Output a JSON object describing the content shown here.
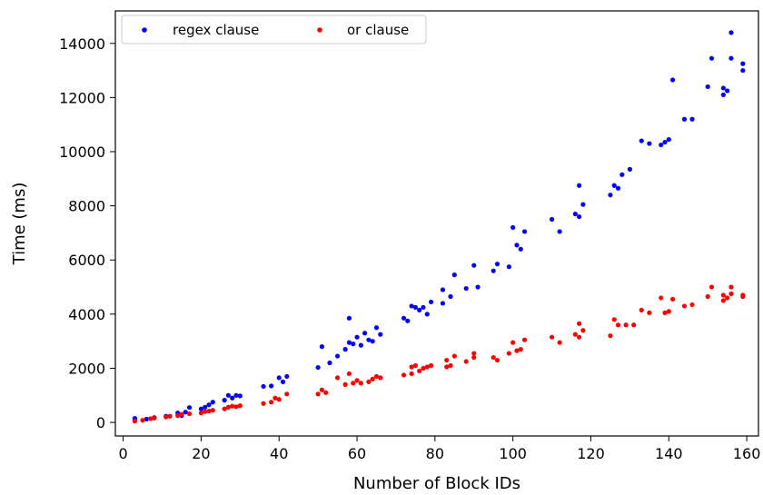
{
  "chart_data": {
    "type": "scatter",
    "xlabel": "Number of Block IDs",
    "ylabel": "Time (ms)",
    "xlim": [
      -2,
      163
    ],
    "ylim": [
      -500,
      15200
    ],
    "xticks": [
      0,
      20,
      40,
      60,
      80,
      100,
      120,
      140,
      160
    ],
    "yticks": [
      0,
      2000,
      4000,
      6000,
      8000,
      10000,
      12000,
      14000
    ],
    "grid": false,
    "legend_position": "top-left",
    "series": [
      {
        "name": "regex clause",
        "color": "#0000ff",
        "points": [
          [
            3,
            150
          ],
          [
            3,
            100
          ],
          [
            6,
            120
          ],
          [
            8,
            180
          ],
          [
            11,
            230
          ],
          [
            14,
            350
          ],
          [
            15,
            250
          ],
          [
            16,
            380
          ],
          [
            17,
            550
          ],
          [
            20,
            500
          ],
          [
            21,
            560
          ],
          [
            22,
            650
          ],
          [
            23,
            750
          ],
          [
            26,
            820
          ],
          [
            27,
            1000
          ],
          [
            28,
            900
          ],
          [
            29,
            1000
          ],
          [
            30,
            980
          ],
          [
            36,
            1330
          ],
          [
            38,
            1350
          ],
          [
            40,
            1650
          ],
          [
            41,
            1500
          ],
          [
            42,
            1700
          ],
          [
            50,
            2030
          ],
          [
            51,
            2800
          ],
          [
            53,
            2200
          ],
          [
            55,
            2450
          ],
          [
            57,
            2700
          ],
          [
            58,
            2950
          ],
          [
            58,
            3850
          ],
          [
            59,
            2900
          ],
          [
            60,
            3150
          ],
          [
            61,
            2850
          ],
          [
            62,
            3300
          ],
          [
            63,
            3050
          ],
          [
            64,
            3000
          ],
          [
            65,
            3500
          ],
          [
            66,
            3250
          ],
          [
            72,
            3850
          ],
          [
            73,
            3750
          ],
          [
            74,
            4300
          ],
          [
            75,
            4250
          ],
          [
            76,
            4150
          ],
          [
            77,
            4250
          ],
          [
            78,
            4000
          ],
          [
            79,
            4450
          ],
          [
            82,
            4900
          ],
          [
            82,
            4400
          ],
          [
            84,
            4650
          ],
          [
            85,
            5450
          ],
          [
            88,
            4950
          ],
          [
            90,
            5800
          ],
          [
            91,
            5000
          ],
          [
            95,
            5600
          ],
          [
            96,
            5850
          ],
          [
            99,
            5750
          ],
          [
            100,
            7200
          ],
          [
            101,
            6550
          ],
          [
            102,
            6400
          ],
          [
            103,
            7050
          ],
          [
            110,
            7500
          ],
          [
            112,
            7050
          ],
          [
            116,
            7700
          ],
          [
            117,
            8750
          ],
          [
            117,
            7600
          ],
          [
            118,
            8050
          ],
          [
            125,
            8400
          ],
          [
            126,
            8750
          ],
          [
            127,
            8650
          ],
          [
            128,
            9150
          ],
          [
            130,
            9350
          ],
          [
            133,
            10400
          ],
          [
            135,
            10300
          ],
          [
            138,
            10250
          ],
          [
            139,
            10350
          ],
          [
            140,
            10450
          ],
          [
            141,
            12650
          ],
          [
            144,
            11200
          ],
          [
            146,
            11200
          ],
          [
            150,
            12400
          ],
          [
            151,
            13450
          ],
          [
            154,
            12350
          ],
          [
            154,
            12100
          ],
          [
            155,
            12250
          ],
          [
            156,
            14400
          ],
          [
            156,
            13450
          ],
          [
            159,
            13250
          ],
          [
            159,
            13000
          ]
        ]
      },
      {
        "name": "or clause",
        "color": "#ff0000",
        "points": [
          [
            3,
            50
          ],
          [
            5,
            80
          ],
          [
            7,
            140
          ],
          [
            8,
            160
          ],
          [
            11,
            200
          ],
          [
            12,
            230
          ],
          [
            14,
            250
          ],
          [
            15,
            300
          ],
          [
            17,
            320
          ],
          [
            20,
            350
          ],
          [
            21,
            400
          ],
          [
            22,
            420
          ],
          [
            23,
            450
          ],
          [
            26,
            500
          ],
          [
            27,
            560
          ],
          [
            28,
            600
          ],
          [
            29,
            580
          ],
          [
            30,
            620
          ],
          [
            36,
            700
          ],
          [
            38,
            750
          ],
          [
            39,
            900
          ],
          [
            40,
            850
          ],
          [
            42,
            1050
          ],
          [
            50,
            1050
          ],
          [
            51,
            1200
          ],
          [
            52,
            1100
          ],
          [
            55,
            1650
          ],
          [
            57,
            1400
          ],
          [
            58,
            1800
          ],
          [
            59,
            1450
          ],
          [
            60,
            1550
          ],
          [
            61,
            1450
          ],
          [
            63,
            1500
          ],
          [
            64,
            1600
          ],
          [
            65,
            1700
          ],
          [
            66,
            1650
          ],
          [
            72,
            1750
          ],
          [
            74,
            1800
          ],
          [
            74,
            2050
          ],
          [
            75,
            2100
          ],
          [
            76,
            1900
          ],
          [
            77,
            2000
          ],
          [
            78,
            2050
          ],
          [
            79,
            2100
          ],
          [
            83,
            2300
          ],
          [
            83,
            2050
          ],
          [
            84,
            2100
          ],
          [
            85,
            2450
          ],
          [
            88,
            2250
          ],
          [
            90,
            2550
          ],
          [
            90,
            2400
          ],
          [
            95,
            2400
          ],
          [
            96,
            2300
          ],
          [
            99,
            2550
          ],
          [
            100,
            2950
          ],
          [
            101,
            2650
          ],
          [
            102,
            2700
          ],
          [
            103,
            3050
          ],
          [
            110,
            3150
          ],
          [
            112,
            2950
          ],
          [
            116,
            3250
          ],
          [
            117,
            3650
          ],
          [
            117,
            3150
          ],
          [
            118,
            3400
          ],
          [
            125,
            3200
          ],
          [
            126,
            3800
          ],
          [
            127,
            3600
          ],
          [
            129,
            3600
          ],
          [
            131,
            3600
          ],
          [
            133,
            4150
          ],
          [
            135,
            4050
          ],
          [
            138,
            4600
          ],
          [
            139,
            4050
          ],
          [
            140,
            4100
          ],
          [
            141,
            4550
          ],
          [
            144,
            4300
          ],
          [
            146,
            4350
          ],
          [
            150,
            4650
          ],
          [
            151,
            5000
          ],
          [
            154,
            4500
          ],
          [
            154,
            4700
          ],
          [
            155,
            4600
          ],
          [
            156,
            5000
          ],
          [
            156,
            4750
          ],
          [
            159,
            4650
          ],
          [
            159,
            4700
          ]
        ]
      }
    ]
  }
}
